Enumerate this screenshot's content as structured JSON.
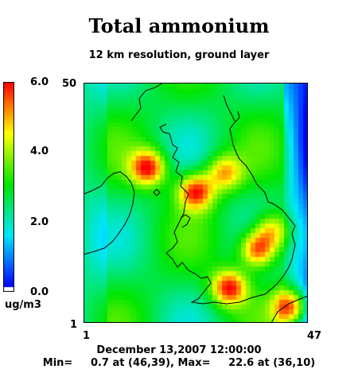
{
  "title": "Total ammonium",
  "subtitle": "12 km resolution, ground layer",
  "colorbar": {
    "unit": "ug/m3",
    "ticks": [
      {
        "value": 6.0,
        "label": "6.0"
      },
      {
        "value": 4.0,
        "label": "4.0"
      },
      {
        "value": 2.0,
        "label": "2.0"
      },
      {
        "value": 0.0,
        "label": "0.0"
      }
    ],
    "range": [
      0,
      6
    ]
  },
  "axes": {
    "x_min_label": "1",
    "x_max_label": "47",
    "y_min_label": "1",
    "y_max_label": "50"
  },
  "footer": {
    "date": "December 13,2007 12:00:00",
    "stats": "Min=     0.7 at (46,39), Max=     22.6 at (36,10)"
  },
  "chart_data": {
    "type": "heatmap",
    "title": "Total ammonium",
    "subtitle": "12 km resolution, ground layer",
    "grid": {
      "columns": [
        1,
        47
      ],
      "rows": [
        1,
        50
      ]
    },
    "value_range": [
      0,
      6
    ],
    "unit": "ug/m3",
    "min": {
      "value": 0.7,
      "col": 46,
      "row": 39
    },
    "max": {
      "value": 22.6,
      "col": 36,
      "row": 10
    },
    "hotspots": [
      {
        "col": 14,
        "row": 33,
        "value": 6.0
      },
      {
        "col": 24,
        "row": 28,
        "value": 6.0
      },
      {
        "col": 30,
        "row": 32,
        "value": 5.0
      },
      {
        "col": 37,
        "row": 16,
        "value": 6.0
      },
      {
        "col": 31,
        "row": 8,
        "value": 6.0
      },
      {
        "col": 44,
        "row": 4,
        "value": 6.0
      },
      {
        "col": 40,
        "row": 20,
        "value": 5.0
      }
    ],
    "colors": {
      "low": "#0000ff",
      "mid_low": "#00ffff",
      "mid": "#00ff00",
      "mid_high": "#ffff00",
      "high": "#ff0000",
      "below": "#ffffff"
    }
  }
}
